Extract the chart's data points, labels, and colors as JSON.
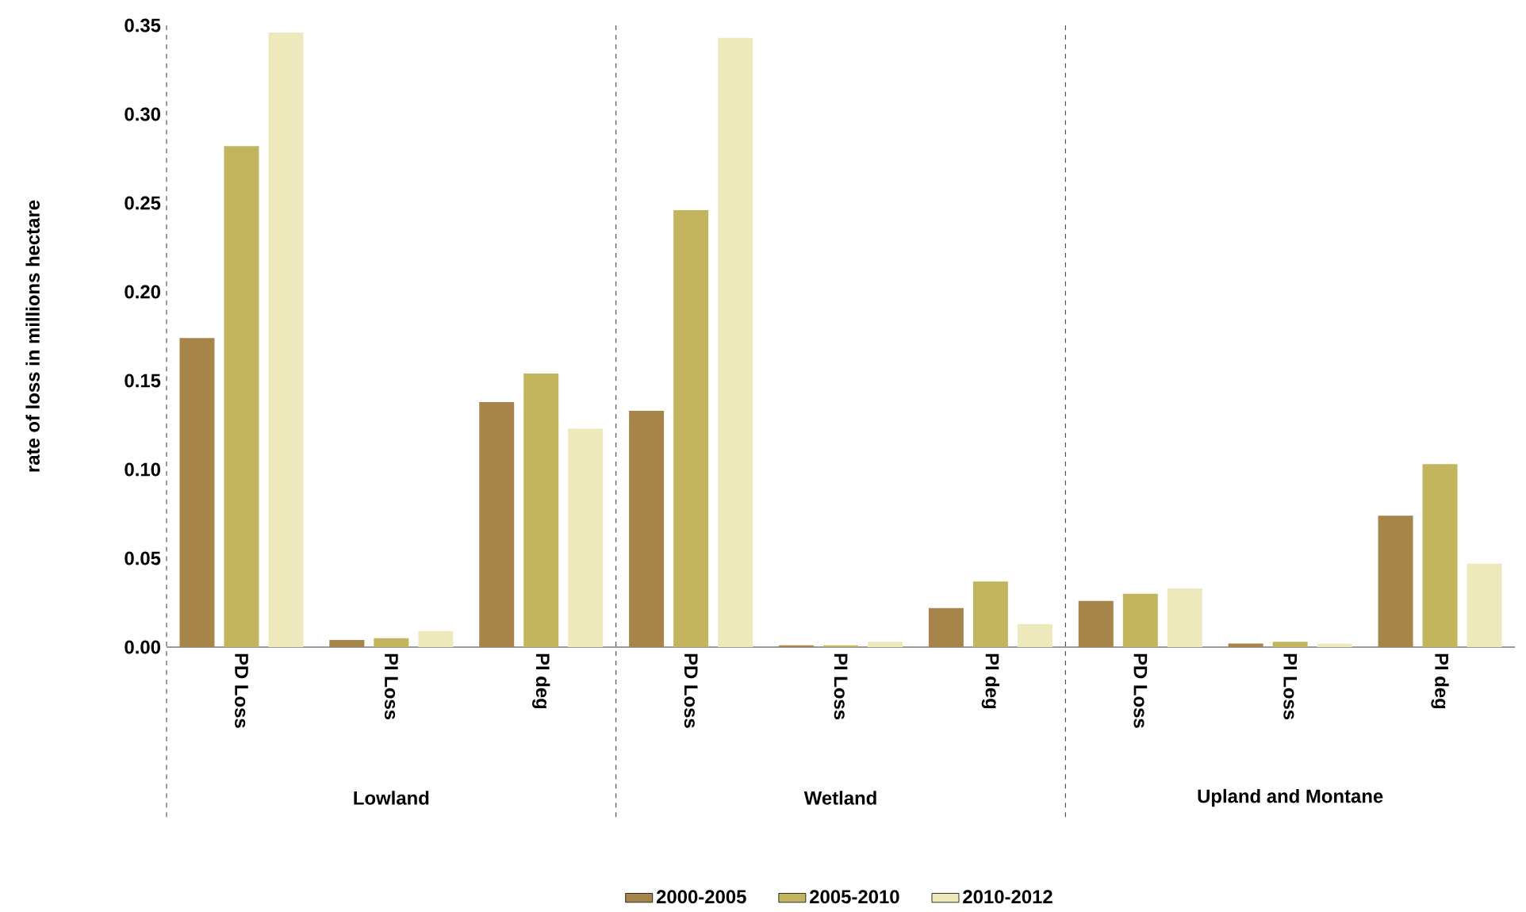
{
  "chart_data": {
    "type": "bar",
    "ylabel": "rate of loss in millions hectare",
    "categories": [
      "PD Loss",
      "PI Loss",
      "PI deg",
      "PD Loss",
      "PI Loss",
      "PI deg",
      "PD Loss",
      "PI Loss",
      "PI deg"
    ],
    "series": [
      {
        "name": "2000-2005",
        "color": "#a6844a",
        "values": [
          0.174,
          0.004,
          0.138,
          0.133,
          0.001,
          0.022,
          0.026,
          0.002,
          0.074
        ]
      },
      {
        "name": "2005-2010",
        "color": "#c2b55e",
        "values": [
          0.282,
          0.005,
          0.154,
          0.246,
          0.001,
          0.037,
          0.03,
          0.003,
          0.103
        ]
      },
      {
        "name": "2010-2012",
        "color": "#ede9bd",
        "values": [
          0.346,
          0.009,
          0.123,
          0.343,
          0.003,
          0.013,
          0.033,
          0.002,
          0.047
        ]
      }
    ],
    "annotations": [
      "Lowland",
      "Wetland",
      "Upland and Montane"
    ],
    "ylim": [
      0,
      0.35
    ],
    "yticks": [
      {
        "value": 0,
        "label": "0.00"
      },
      {
        "value": 0.05,
        "label": "0.05"
      },
      {
        "value": 0.1,
        "label": "0.10"
      },
      {
        "value": 0.15,
        "label": "0.15"
      },
      {
        "value": 0.2,
        "label": "0.20"
      },
      {
        "value": 0.25,
        "label": "0.25"
      },
      {
        "value": 0.3,
        "label": "0.30"
      },
      {
        "value": 0.35,
        "label": "0.35"
      }
    ],
    "grid": false,
    "legend": "bottom"
  }
}
